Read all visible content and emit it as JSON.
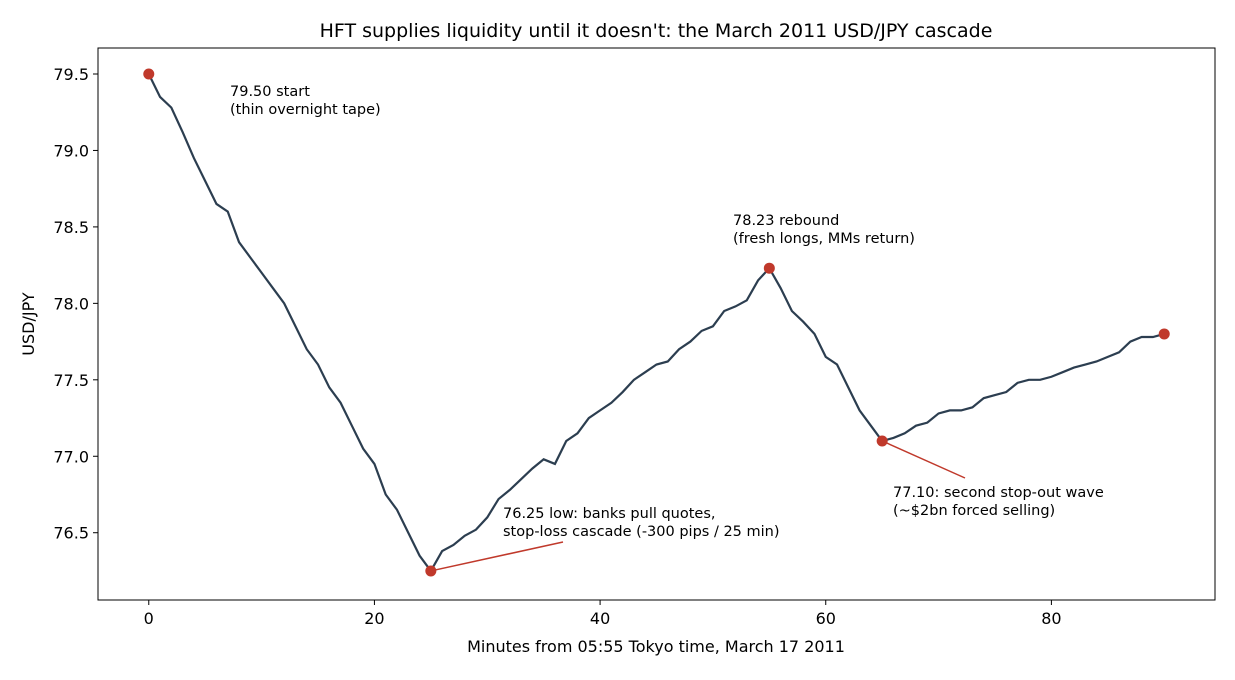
{
  "chart_data": {
    "type": "line",
    "title": "HFT supplies liquidity until it doesn't: the March 2011 USD/JPY cascade",
    "x_label": "Minutes from 05:55 Tokyo time, March 17 2011",
    "y_label": "USD/JPY",
    "x": [
      0,
      1,
      2,
      3,
      4,
      5,
      6,
      7,
      8,
      9,
      10,
      11,
      12,
      13,
      14,
      15,
      16,
      17,
      18,
      19,
      20,
      21,
      22,
      23,
      24,
      25,
      26,
      27,
      28,
      29,
      30,
      31,
      32,
      33,
      34,
      35,
      36,
      37,
      38,
      39,
      40,
      41,
      42,
      43,
      44,
      45,
      46,
      47,
      48,
      49,
      50,
      51,
      52,
      53,
      54,
      55,
      56,
      57,
      58,
      59,
      60,
      61,
      62,
      63,
      64,
      65,
      66,
      67,
      68,
      69,
      70,
      71,
      72,
      73,
      74,
      75,
      76,
      77,
      78,
      79,
      80,
      81,
      82,
      83,
      84,
      85,
      86,
      87,
      88,
      89,
      90
    ],
    "series": [
      {
        "color": "#2c3e50",
        "values": [
          79.5,
          79.35,
          79.28,
          79.12,
          78.95,
          78.8,
          78.65,
          78.6,
          78.4,
          78.3,
          78.2,
          78.1,
          78.0,
          77.85,
          77.7,
          77.6,
          77.45,
          77.35,
          77.2,
          77.05,
          76.95,
          76.75,
          76.65,
          76.5,
          76.35,
          76.25,
          76.38,
          76.42,
          76.48,
          76.52,
          76.6,
          76.72,
          76.78,
          76.85,
          76.92,
          76.98,
          76.95,
          77.1,
          77.15,
          77.25,
          77.3,
          77.35,
          77.42,
          77.5,
          77.55,
          77.6,
          77.62,
          77.7,
          77.75,
          77.82,
          77.85,
          77.95,
          77.98,
          78.02,
          78.15,
          78.23,
          78.1,
          77.95,
          77.88,
          77.8,
          77.65,
          77.6,
          77.45,
          77.3,
          77.2,
          77.1,
          77.12,
          77.15,
          77.2,
          77.22,
          77.28,
          77.3,
          77.3,
          77.32,
          77.38,
          77.4,
          77.42,
          77.48,
          77.5,
          77.5,
          77.52,
          77.55,
          77.58,
          77.6,
          77.62,
          77.65,
          77.68,
          77.75,
          77.78,
          77.78,
          77.8
        ]
      }
    ],
    "marker_color": "#c0392b",
    "annotations": [
      {
        "x": 0,
        "y": 79.5,
        "text": [
          "79.50 start",
          "(thin overnight tape)"
        ]
      },
      {
        "x": 25,
        "y": 76.25,
        "text": [
          "76.25 low: banks pull quotes,",
          "stop-loss cascade (-300 pips / 25 min)"
        ]
      },
      {
        "x": 55,
        "y": 78.23,
        "text": [
          "78.23 rebound",
          "(fresh longs, MMs return)"
        ]
      },
      {
        "x": 65,
        "y": 77.1,
        "text": [
          "77.10: second stop-out wave",
          "(~$2bn forced selling)"
        ]
      },
      {
        "x": 90,
        "y": 77.8,
        "text": []
      }
    ],
    "xlim": [
      -4.5,
      94.5
    ],
    "ylim": [
      76.06,
      79.67
    ],
    "xticks": [
      0,
      20,
      40,
      60,
      80
    ],
    "yticks": [
      76.5,
      {
        "value": 77,
        "label": "77.0"
      },
      77.5,
      {
        "value": 78,
        "label": "78.0"
      },
      78.5,
      {
        "value": 79,
        "label": "79.0"
      },
      79.5
    ],
    "grid": false
  }
}
